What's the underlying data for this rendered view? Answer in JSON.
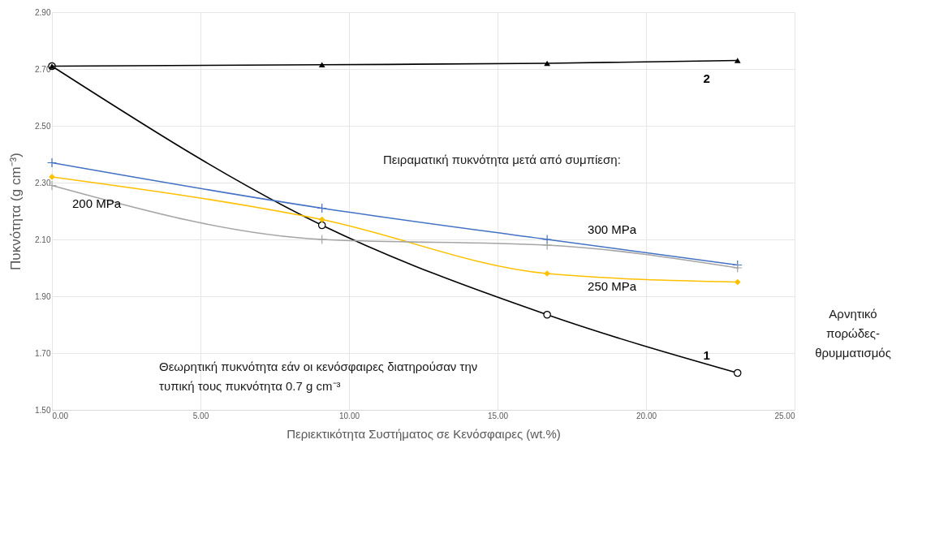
{
  "chart_data": {
    "type": "line",
    "xlabel": "Περιεκτικότητα Συστήματος σε Κενόσφαιρες (wt.%)",
    "ylabel": "Πυκνότητα (g cm⁻³)",
    "x": [
      0,
      9.09,
      16.67,
      23.08
    ],
    "series": [
      {
        "name": "1",
        "color": "#000000",
        "marker": "circle",
        "values": [
          2.71,
          2.15,
          1.835,
          1.63
        ]
      },
      {
        "name": "2",
        "color": "#000000",
        "marker": "triangle",
        "values": [
          2.71,
          2.715,
          2.72,
          2.73
        ]
      },
      {
        "name": "300 MPa",
        "color": "#4472c4",
        "marker": "cross",
        "values": [
          2.37,
          2.21,
          2.1,
          2.01
        ]
      },
      {
        "name": "250 MPa",
        "color": "#ffc000",
        "marker": "diamond",
        "values": [
          2.32,
          2.17,
          1.98,
          1.95
        ]
      },
      {
        "name": "200 MPa",
        "color": "#a5a5a5",
        "marker": "cross",
        "values": [
          2.29,
          2.1,
          2.08,
          2.0
        ]
      }
    ],
    "xlim": [
      0,
      25
    ],
    "xticks": [
      {
        "value": 0,
        "label": "0.00"
      },
      {
        "value": 5,
        "label": "5.00"
      },
      {
        "value": 10,
        "label": "10.00"
      },
      {
        "value": 15,
        "label": "15.00"
      },
      {
        "value": 20,
        "label": "20.00"
      },
      {
        "value": 25,
        "label": "25.00"
      }
    ],
    "ylim": [
      1.5,
      2.9
    ],
    "yticks": [
      {
        "value": 1.5,
        "label": "1.50"
      },
      {
        "value": 1.7,
        "label": "1.70"
      },
      {
        "value": 1.9,
        "label": "1.90"
      },
      {
        "value": 2.1,
        "label": "2.10"
      },
      {
        "value": 2.3,
        "label": "2.30"
      },
      {
        "value": 2.5,
        "label": "2.50"
      },
      {
        "value": 2.7,
        "label": "2.70"
      },
      {
        "value": 2.9,
        "label": "2.90"
      }
    ],
    "grid": true,
    "legend": false,
    "line_style": "solid",
    "annotations": [
      "Πειραματική πυκνότητα μετά από συμπίεση:",
      "Θεωρητική πυκνότητα εάν οι κενόσφαιρες διατηρούσαν την\nτυπική τους πυκνότητα 0.7 g cm⁻³",
      "Αρνητικό\nπορώδες-\nθρυμματισμός"
    ]
  }
}
